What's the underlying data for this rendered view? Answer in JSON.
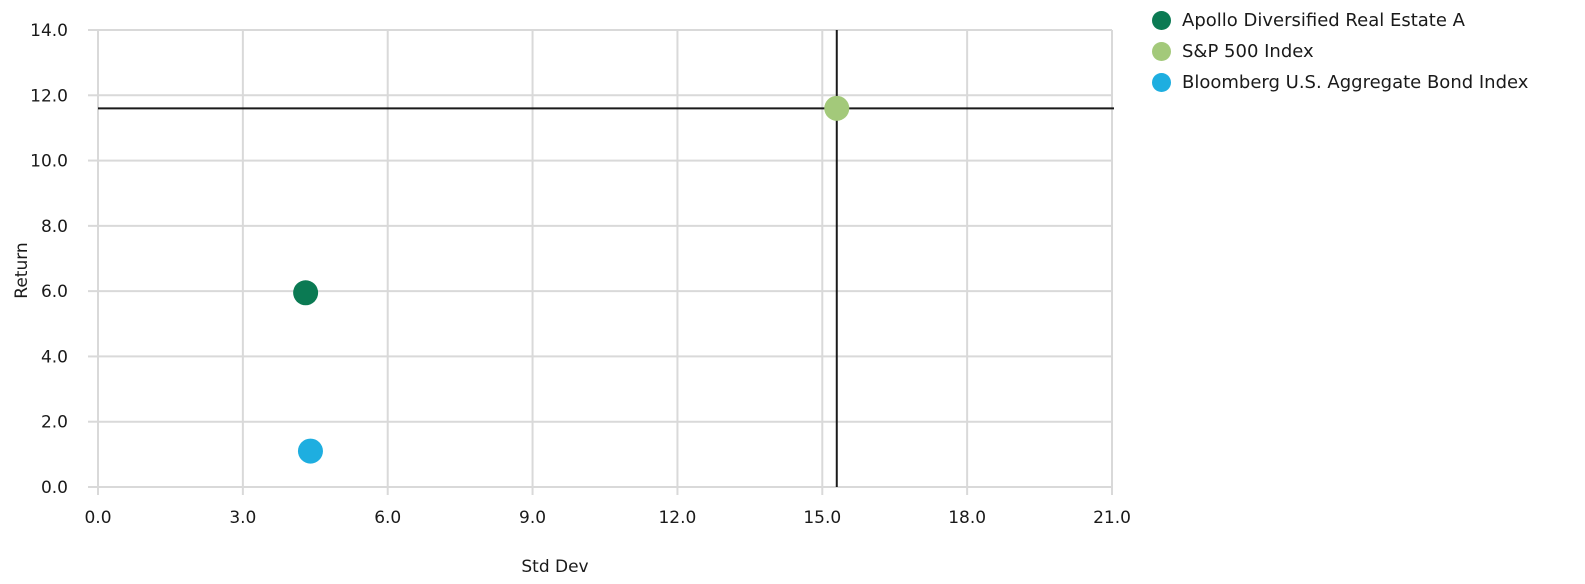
{
  "chart_data": {
    "type": "scatter",
    "xlabel": "Std Dev",
    "ylabel": "Return",
    "xlim": [
      0,
      21
    ],
    "ylim": [
      0,
      14
    ],
    "x_ticks": [
      "0.0",
      "3.0",
      "6.0",
      "9.0",
      "12.0",
      "15.0",
      "18.0",
      "21.0"
    ],
    "y_ticks": [
      "0.0",
      "2.0",
      "4.0",
      "6.0",
      "8.0",
      "10.0",
      "12.0",
      "14.0"
    ],
    "grid": true,
    "legend_position": "top-right",
    "reference_lines": {
      "x": 15.3,
      "y": 11.6
    },
    "series": [
      {
        "name": "Apollo Diversified Real Estate A",
        "color": "#0b7a53",
        "x": 4.3,
        "y": 5.95
      },
      {
        "name": "S&P 500 Index",
        "color": "#a3c97a",
        "x": 15.3,
        "y": 11.6
      },
      {
        "name": "Bloomberg U.S. Aggregate Bond Index",
        "color": "#1eaee0",
        "x": 4.4,
        "y": 1.1
      }
    ]
  }
}
